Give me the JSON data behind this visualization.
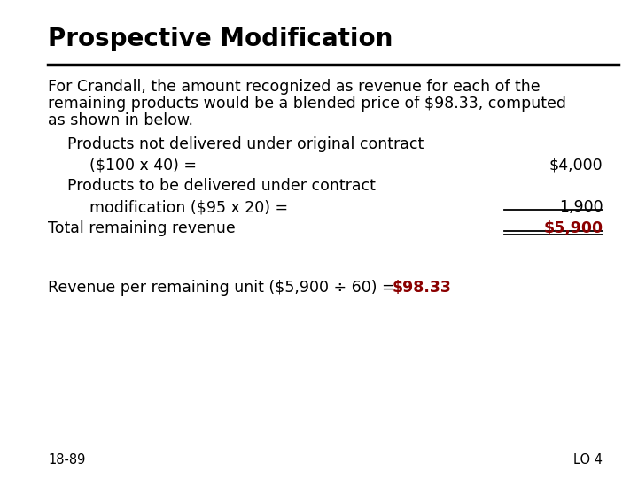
{
  "title": "Prospective Modification",
  "bg_color": "#ffffff",
  "title_color": "#000000",
  "title_fontsize": 20,
  "body_fontsize": 12.5,
  "small_fontsize": 10.5,
  "text_color": "#000000",
  "red_color": "#8b0000",
  "line1": "For Crandall, the amount recognized as revenue for each of the",
  "line2": "remaining products would be a blended price of $98.33, computed",
  "line3": "as shown in below.",
  "label_products_not": "Products not delivered under original contract",
  "label_100x40": "($100 x 40) =",
  "value_100x40": "$4,000",
  "label_products_to": "Products to be delivered under contract",
  "label_mod": "modification ($95 x 20) =",
  "value_mod": "1,900",
  "label_total": "Total remaining revenue",
  "value_total": "$5,900",
  "footnote_black": "Revenue per remaining unit ($5,900 ÷ 60) = ",
  "footnote_red": "$98.33",
  "page_left": "18-89",
  "page_right": "LO 4"
}
